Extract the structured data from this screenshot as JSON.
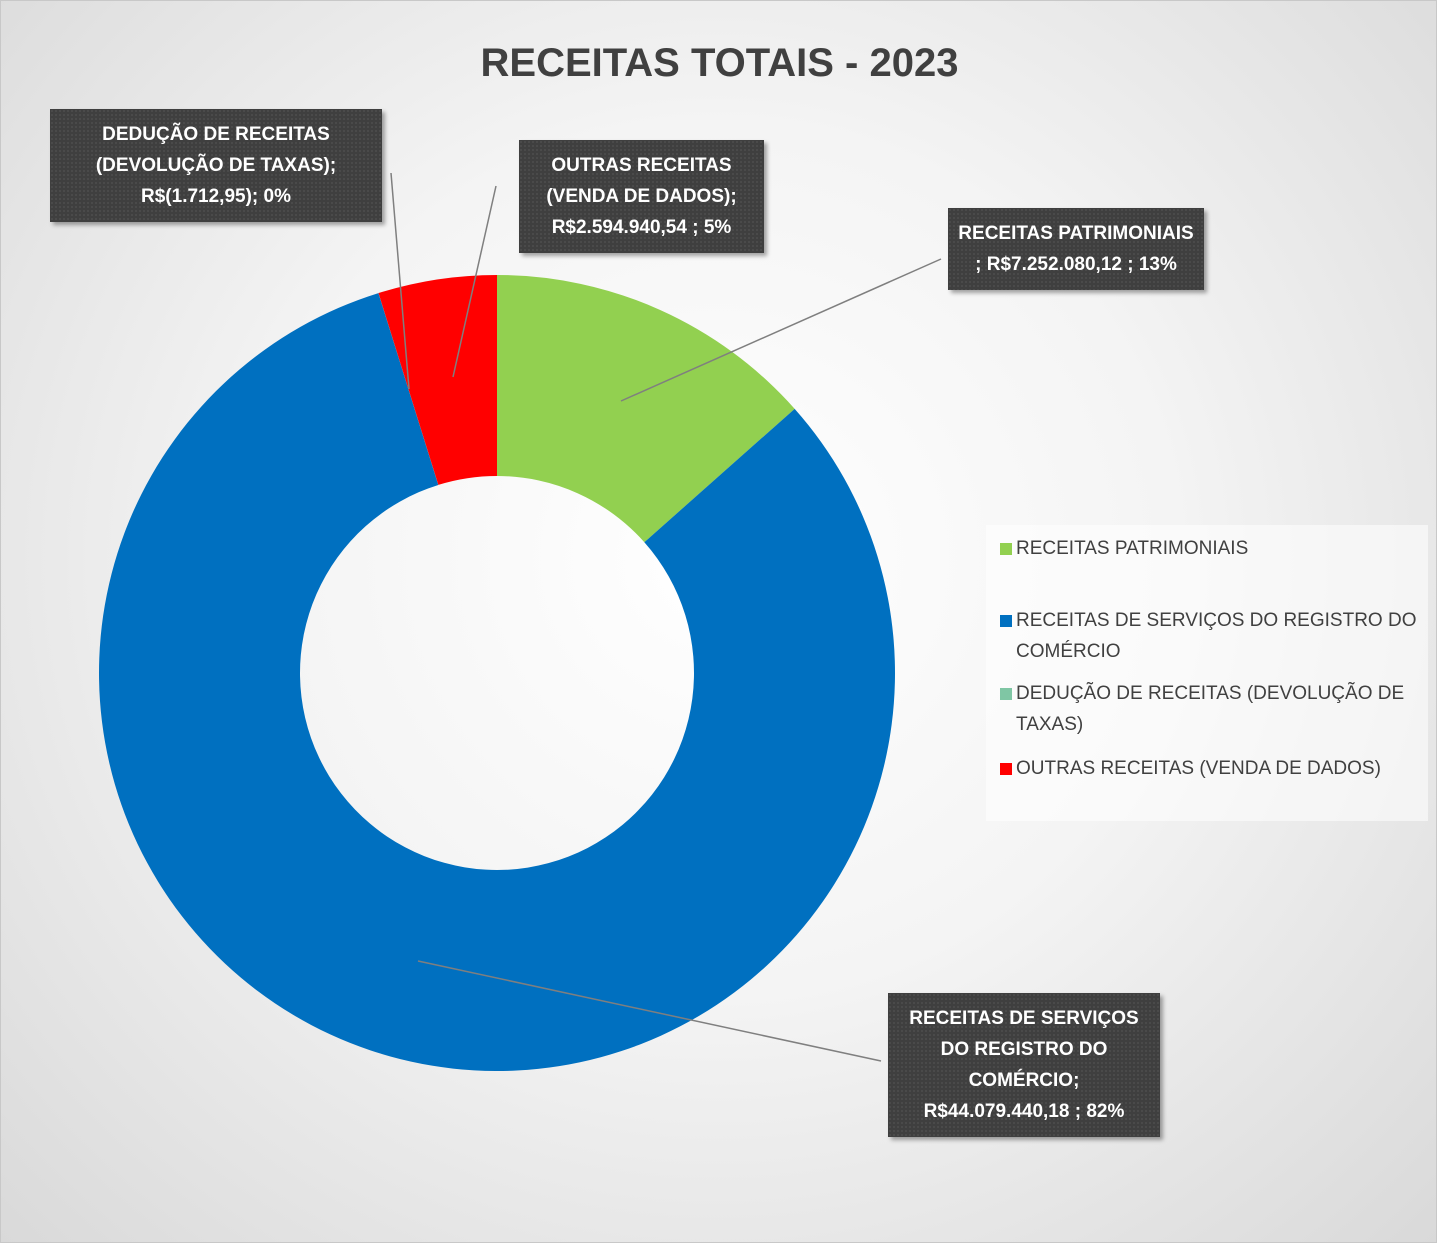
{
  "chart_data": {
    "type": "pie",
    "donut": true,
    "title": "RECEITAS TOTAIS - 2023",
    "categories": [
      "RECEITAS PATRIMONIAIS",
      "RECEITAS DE SERVIÇOS DO REGISTRO DO COMÉRCIO",
      "DEDUÇÃO DE RECEITAS (DEVOLUÇÃO DE TAXAS)",
      "OUTRAS RECEITAS (VENDA DE DADOS)"
    ],
    "values": [
      7252080.12,
      44079440.18,
      -1712.95,
      2594940.54
    ],
    "value_labels": [
      "RECEITAS PATRIMONIAIS ; R$7.252.080,12 ; 13%",
      "RECEITAS DE SERVIÇOS DO REGISTRO DO COMÉRCIO; R$44.079.440,18 ; 82%",
      "DEDUÇÃO DE RECEITAS (DEVOLUÇÃO DE TAXAS); R$(1.712,95); 0%",
      "OUTRAS RECEITAS (VENDA DE DADOS); R$2.594.940,54 ; 5%"
    ],
    "colors": [
      "#92d050",
      "#0070c0",
      "#7fc6a4",
      "#ff0000"
    ],
    "legend": "right"
  }
}
